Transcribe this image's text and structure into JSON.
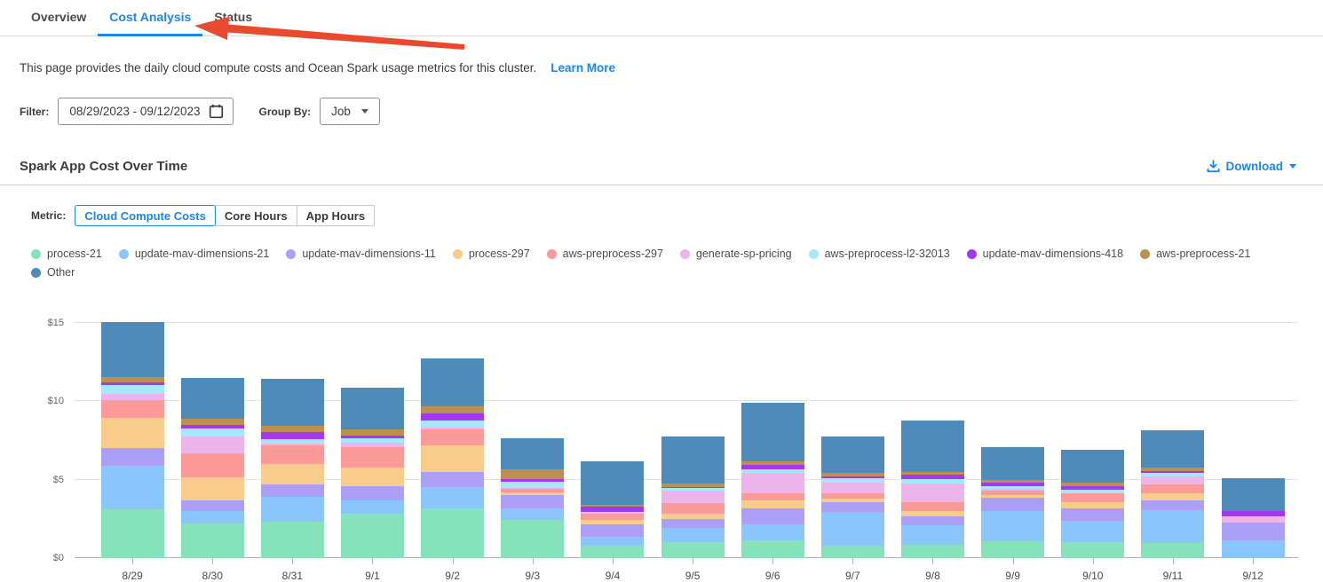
{
  "tabs": {
    "items": [
      {
        "label": "Overview",
        "active": false
      },
      {
        "label": "Cost Analysis",
        "active": true
      },
      {
        "label": "Status",
        "active": false
      }
    ]
  },
  "description": {
    "text": "This page provides the daily cloud compute costs and Ocean Spark usage metrics for this cluster.",
    "link_label": "Learn More"
  },
  "filters": {
    "filter_label": "Filter:",
    "date_range_value": "08/29/2023  -  09/12/2023",
    "group_by_label": "Group By:",
    "group_by_value": "Job"
  },
  "section": {
    "title": "Spark App Cost Over Time",
    "download_label": "Download"
  },
  "metric": {
    "label": "Metric:",
    "options": [
      {
        "label": "Cloud Compute Costs",
        "active": true
      },
      {
        "label": "Core Hours",
        "active": false
      },
      {
        "label": "App Hours",
        "active": false
      }
    ]
  },
  "colors": {
    "accent": "#1a87ee",
    "annotation_arrow": "#e84a2e"
  },
  "chart_data": {
    "type": "bar",
    "stacked": true,
    "title": "Spark App Cost Over Time",
    "xlabel": "",
    "ylabel": "",
    "grid": true,
    "legend_position": "top",
    "ylim": [
      0,
      16
    ],
    "yticks": [
      0,
      5,
      10,
      15
    ],
    "ytick_labels": [
      "$0",
      "$5",
      "$10",
      "$15"
    ],
    "categories": [
      "8/29",
      "8/30",
      "8/31",
      "9/1",
      "9/2",
      "9/3",
      "9/4",
      "9/5",
      "9/6",
      "9/7",
      "9/8",
      "9/9",
      "9/10",
      "9/11",
      "9/12"
    ],
    "series": [
      {
        "name": "process-21",
        "color": "#85e2ba",
        "values": [
          3.1,
          2.2,
          2.3,
          2.85,
          3.15,
          2.45,
          0.8,
          1.0,
          1.15,
          0.8,
          0.85,
          1.05,
          1.0,
          0.95,
          0
        ]
      },
      {
        "name": "update-mav-dimensions-21",
        "color": "#8ac6fb",
        "values": [
          2.75,
          0.8,
          1.6,
          0.8,
          1.35,
          0.7,
          0.55,
          0.9,
          1.0,
          2.15,
          1.25,
          1.95,
          1.4,
          2.1,
          1.15
        ]
      },
      {
        "name": "update-mav-dimensions-11",
        "color": "#ab9ff8",
        "values": [
          1.15,
          0.65,
          0.8,
          0.9,
          1.0,
          0.85,
          0.8,
          0.6,
          1.0,
          0.6,
          0.55,
          0.85,
          0.75,
          0.6,
          1.1
        ]
      },
      {
        "name": "process-297",
        "color": "#f8cc8b",
        "values": [
          1.95,
          1.5,
          1.3,
          1.2,
          1.7,
          0.2,
          0.3,
          0.3,
          0.55,
          0.25,
          0.35,
          0.15,
          0.4,
          0.5,
          0
        ]
      },
      {
        "name": "aws-preprocess-297",
        "color": "#fc9a9a",
        "values": [
          1.1,
          1.5,
          1.15,
          1.3,
          1.0,
          0.2,
          0.35,
          0.7,
          0.4,
          0.35,
          0.55,
          0.3,
          0.55,
          0.55,
          0
        ]
      },
      {
        "name": "generate-sp-pricing",
        "color": "#ecb4ea",
        "values": [
          0.4,
          1.1,
          0.15,
          0.3,
          0.1,
          0.05,
          0.1,
          0.8,
          1.3,
          0.65,
          1.2,
          0.1,
          0.05,
          0.5,
          0.4
        ]
      },
      {
        "name": "aws-preprocess-l2-32013",
        "color": "#a4e8fd",
        "values": [
          0.55,
          0.5,
          0.3,
          0.3,
          0.45,
          0.4,
          0.05,
          0.15,
          0.25,
          0.3,
          0.3,
          0.2,
          0.2,
          0.2,
          0
        ]
      },
      {
        "name": "update-mav-dimensions-418",
        "color": "#a438f0",
        "values": [
          0.2,
          0.2,
          0.45,
          0.15,
          0.45,
          0.2,
          0.35,
          0.1,
          0.3,
          0.1,
          0.25,
          0.2,
          0.25,
          0.15,
          0.35
        ]
      },
      {
        "name": "aws-preprocess-21",
        "color": "#bd9050",
        "values": [
          0.35,
          0.4,
          0.35,
          0.4,
          0.45,
          0.6,
          0.1,
          0.2,
          0.2,
          0.25,
          0.2,
          0.2,
          0.2,
          0.2,
          0
        ]
      },
      {
        "name": "Other",
        "color": "#4e8bb8",
        "values": [
          3.5,
          2.65,
          3.0,
          2.65,
          3.05,
          2.0,
          2.75,
          3.0,
          3.75,
          2.3,
          3.25,
          2.05,
          2.1,
          2.4,
          2.1
        ]
      }
    ]
  }
}
